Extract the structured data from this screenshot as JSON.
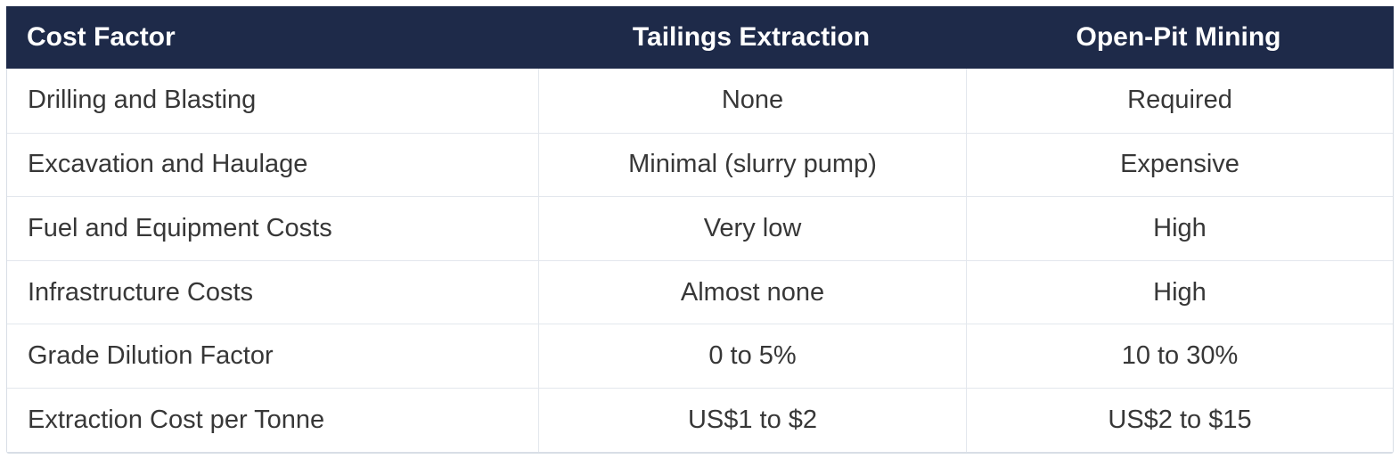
{
  "chart_data": {
    "type": "table",
    "title": "",
    "columns": [
      "Cost Factor",
      "Tailings Extraction",
      "Open-Pit Mining"
    ],
    "rows": [
      [
        "Drilling and Blasting",
        "None",
        "Required"
      ],
      [
        "Excavation and Haulage",
        "Minimal (slurry pump)",
        "Expensive"
      ],
      [
        "Fuel and Equipment Costs",
        "Very low",
        "High"
      ],
      [
        "Infrastructure Costs",
        "Almost none",
        "High"
      ],
      [
        "Grade Dilution Factor",
        "0 to 5%",
        "10 to 30%"
      ],
      [
        "Extraction Cost per Tonne",
        "US$1 to $2",
        "US$2 to $15"
      ]
    ]
  },
  "colors": {
    "header_bg": "#1e2a49",
    "header_text": "#ffffff",
    "body_text": "#373737",
    "row_line": "#e3e7ed",
    "outer_border": "#d8dee6",
    "page_bg": "#ffffff"
  }
}
